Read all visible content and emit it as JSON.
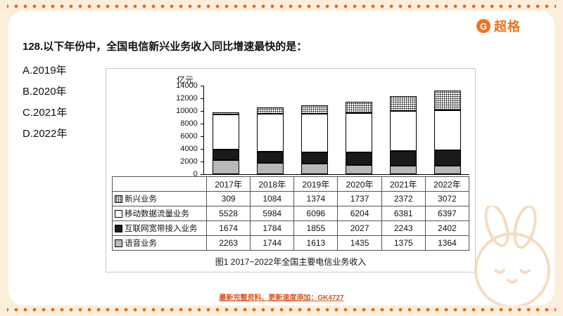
{
  "page": {
    "brand": "超格",
    "brand_icon": "G",
    "question": "128.以下年份中，全国电信新兴业务收入同比增速最快的是：",
    "options": [
      {
        "label": "A.2019年"
      },
      {
        "label": "B.2020年"
      },
      {
        "label": "C.2021年"
      },
      {
        "label": "D.2022年"
      }
    ],
    "footer": "最新完整资料、更新速度添加：GK4727"
  },
  "chart_data": {
    "type": "bar",
    "stacked": true,
    "unit_label": "亿元",
    "categories": [
      "2017年",
      "2018年",
      "2019年",
      "2020年",
      "2021年",
      "2022年"
    ],
    "series": [
      {
        "name": "新兴业务",
        "style": "hatch",
        "values": [
          309,
          1084,
          1374,
          1737,
          2372,
          3072
        ]
      },
      {
        "name": "移动数据流量业务",
        "style": "white",
        "values": [
          5528,
          5984,
          6096,
          6204,
          6381,
          6397
        ]
      },
      {
        "name": "互联网宽带接入业务",
        "style": "black",
        "values": [
          1674,
          1784,
          1855,
          2027,
          2243,
          2402
        ]
      },
      {
        "name": "语音业务",
        "style": "gray",
        "values": [
          2263,
          1744,
          1613,
          1435,
          1375,
          1364
        ]
      }
    ],
    "ylim": [
      0,
      14000
    ],
    "ytick_step": 2000,
    "grid": false,
    "legend_position": "table-left",
    "caption": "图1 2017~2022年全国主要电信业务收入"
  }
}
